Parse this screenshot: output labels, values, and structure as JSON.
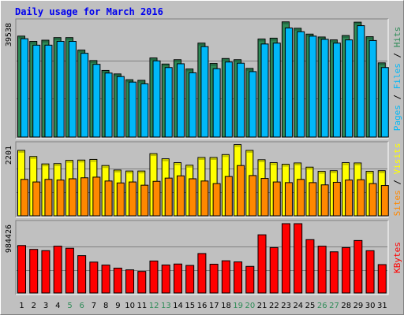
{
  "chart_data": {
    "type": "bar",
    "title": "Daily usage for March 2016",
    "categories": [
      "1",
      "2",
      "3",
      "4",
      "5",
      "6",
      "7",
      "8",
      "9",
      "10",
      "11",
      "12",
      "13",
      "14",
      "15",
      "16",
      "17",
      "18",
      "19",
      "20",
      "21",
      "22",
      "23",
      "24",
      "25",
      "26",
      "27",
      "28",
      "29",
      "30",
      "31"
    ],
    "weekend_days": [
      "5",
      "6",
      "12",
      "13",
      "19",
      "20",
      "26",
      "27"
    ],
    "panels": [
      {
        "name": "Pages / Files / Hits",
        "ymax_label": "39538",
        "ylim": [
          0,
          39538
        ],
        "series": [
          {
            "name": "Hits",
            "color": "#2e8b57",
            "values": [
              34700,
              32900,
              33300,
              34200,
              34200,
              29900,
              26300,
              22900,
              21700,
              19700,
              19500,
              27200,
              25100,
              26600,
              23400,
              32300,
              25300,
              27000,
              26600,
              23600,
              33700,
              34000,
              39600,
              37400,
              35400,
              34400,
              33400,
              34900,
              39500,
              34500,
              25500
            ]
          },
          {
            "name": "Files",
            "color": "#00b8f8",
            "values": [
              33800,
              31600,
              31600,
              32900,
              32900,
              28800,
              25000,
              22000,
              20800,
              18900,
              18300,
              26200,
              23900,
              25200,
              22100,
              31100,
              23500,
              25800,
              25400,
              22500,
              32000,
              32300,
              37500,
              36200,
              34700,
              33600,
              32300,
              33400,
              38300,
              33200,
              23900
            ]
          },
          {
            "name": "Pages",
            "color": "#0000cc",
            "values": []
          }
        ]
      },
      {
        "name": "Sites / Visits",
        "ymax_label": "2201",
        "ylim": [
          0,
          2201
        ],
        "series": [
          {
            "name": "Visits",
            "color": "#ffff00",
            "values": [
              2030,
              1840,
              1610,
              1620,
              1720,
              1730,
              1750,
              1560,
              1420,
              1390,
              1390,
              1930,
              1770,
              1650,
              1570,
              1810,
              1810,
              1900,
              2210,
              2030,
              1740,
              1650,
              1600,
              1640,
              1510,
              1380,
              1400,
              1650,
              1640,
              1380,
              1400
            ]
          },
          {
            "name": "Sites",
            "color": "#ff8800",
            "values": [
              1130,
              1050,
              1130,
              1110,
              1150,
              1180,
              1200,
              1080,
              1020,
              1050,
              950,
              1070,
              1170,
              1240,
              1150,
              1080,
              1000,
              1220,
              1560,
              1250,
              1160,
              1050,
              1030,
              1130,
              1030,
              960,
              1040,
              1110,
              1120,
              1000,
              940
            ]
          }
        ]
      },
      {
        "name": "KBytes",
        "ymax_label": "984426",
        "ylim": [
          0,
          984426
        ],
        "series": [
          {
            "name": "KBytes",
            "color": "#ff0000",
            "values": [
              673800,
              618700,
              601000,
              664900,
              635200,
              530000,
              438600,
              396300,
              352800,
              328200,
              305800,
              454100,
              397300,
              411100,
              391100,
              560000,
              408500,
              457300,
              441100,
              377400,
              826300,
              644600,
              984600,
              984400,
              757400,
              664900,
              584600,
              644600,
              745300,
              600200,
              402800
            ]
          }
        ]
      }
    ],
    "side_labels": [
      {
        "text": "Pages",
        "color": "#00b8f8"
      },
      {
        "text": "Files",
        "color": "#00b8f8"
      },
      {
        "text": "Hits",
        "color": "#2e8b57"
      },
      {
        "text": "Sites",
        "color": "#ff8800"
      },
      {
        "text": "Visits",
        "color": "#ffff00"
      },
      {
        "text": "KBytes",
        "color": "#ff0000"
      }
    ],
    "colors": {
      "background": "#c0c0c0",
      "frame_light": "#ffffff",
      "frame_dark": "#808080",
      "title": "#0000ee",
      "weekday_label": "#000000",
      "weekend_label": "#2e8b57",
      "gridline": "#808080"
    }
  }
}
